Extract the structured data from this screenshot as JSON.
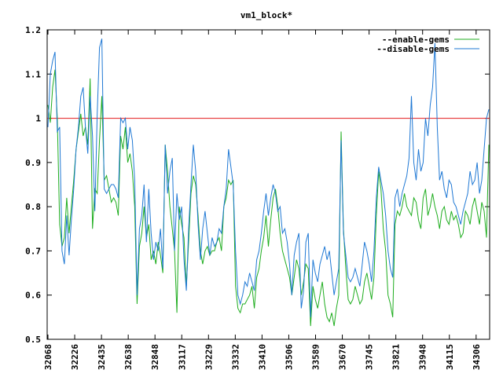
{
  "chart_data": {
    "type": "line",
    "title": "vm1_block*",
    "xlabel": "",
    "ylabel": "",
    "ylim": [
      0.5,
      1.2
    ],
    "yticks": [
      "0.5",
      "0.6",
      "0.7",
      "0.8",
      "0.9",
      "1",
      "1.1",
      "1.2"
    ],
    "xticks": [
      "32068",
      "32226",
      "32435",
      "32638",
      "32848",
      "33117",
      "33229",
      "33332",
      "33410",
      "33506",
      "33589",
      "33670",
      "33745",
      "33821",
      "33948",
      "34115",
      "34306"
    ],
    "legend_position": "top-right",
    "reference_line": {
      "y": 1.0,
      "color": "#e31a1c"
    },
    "series": [
      {
        "name": "--enable-gems",
        "color": "#1fad1f",
        "values": [
          1.03,
          0.99,
          1.07,
          1.11,
          1.0,
          0.76,
          0.71,
          0.73,
          0.82,
          0.74,
          0.8,
          0.86,
          0.93,
          0.97,
          1.01,
          0.96,
          0.98,
          0.94,
          1.09,
          0.75,
          0.84,
          0.83,
          0.95,
          1.05,
          0.86,
          0.87,
          0.84,
          0.81,
          0.82,
          0.81,
          0.78,
          0.96,
          0.93,
          0.98,
          0.9,
          0.92,
          0.88,
          0.8,
          0.58,
          0.71,
          0.74,
          0.8,
          0.73,
          0.76,
          0.68,
          0.7,
          0.67,
          0.72,
          0.69,
          0.65,
          0.94,
          0.88,
          0.8,
          0.75,
          0.7,
          0.56,
          0.8,
          0.76,
          0.73,
          0.62,
          0.72,
          0.83,
          0.87,
          0.85,
          0.78,
          0.7,
          0.67,
          0.7,
          0.71,
          0.69,
          0.7,
          0.7,
          0.72,
          0.73,
          0.7,
          0.8,
          0.82,
          0.86,
          0.85,
          0.86,
          0.62,
          0.57,
          0.56,
          0.58,
          0.58,
          0.59,
          0.6,
          0.62,
          0.57,
          0.64,
          0.66,
          0.7,
          0.73,
          0.78,
          0.71,
          0.77,
          0.82,
          0.84,
          0.8,
          0.74,
          0.7,
          0.68,
          0.66,
          0.64,
          0.6,
          0.64,
          0.68,
          0.66,
          0.6,
          0.63,
          0.67,
          0.66,
          0.53,
          0.62,
          0.59,
          0.57,
          0.6,
          0.63,
          0.58,
          0.55,
          0.54,
          0.56,
          0.53,
          0.57,
          0.6,
          0.97,
          0.75,
          0.66,
          0.59,
          0.58,
          0.59,
          0.62,
          0.6,
          0.58,
          0.59,
          0.63,
          0.65,
          0.62,
          0.59,
          0.64,
          0.78,
          0.88,
          0.84,
          0.75,
          0.7,
          0.6,
          0.58,
          0.55,
          0.76,
          0.79,
          0.78,
          0.8,
          0.83,
          0.8,
          0.79,
          0.78,
          0.82,
          0.81,
          0.77,
          0.75,
          0.82,
          0.84,
          0.78,
          0.8,
          0.83,
          0.8,
          0.78,
          0.75,
          0.79,
          0.8,
          0.77,
          0.76,
          0.79,
          0.77,
          0.78,
          0.76,
          0.73,
          0.74,
          0.79,
          0.78,
          0.76,
          0.8,
          0.82,
          0.79,
          0.76,
          0.81,
          0.79,
          0.73,
          0.94
        ]
      },
      {
        "name": "--disable-gems",
        "color": "#1f78d4",
        "values": [
          0.98,
          1.1,
          1.13,
          1.15,
          0.97,
          0.98,
          0.7,
          0.67,
          0.78,
          0.69,
          0.77,
          0.84,
          0.93,
          0.98,
          1.05,
          1.07,
          0.98,
          0.92,
          1.05,
          0.96,
          0.79,
          1.01,
          1.16,
          1.18,
          0.84,
          0.83,
          0.84,
          0.85,
          0.85,
          0.84,
          0.82,
          1.0,
          0.99,
          1.0,
          0.93,
          0.98,
          0.95,
          0.86,
          0.6,
          0.75,
          0.78,
          0.85,
          0.72,
          0.84,
          0.74,
          0.68,
          0.72,
          0.7,
          0.75,
          0.66,
          0.94,
          0.83,
          0.88,
          0.91,
          0.7,
          0.83,
          0.77,
          0.8,
          0.68,
          0.61,
          0.75,
          0.85,
          0.94,
          0.88,
          0.76,
          0.68,
          0.75,
          0.79,
          0.74,
          0.69,
          0.73,
          0.71,
          0.72,
          0.75,
          0.74,
          0.8,
          0.84,
          0.93,
          0.89,
          0.85,
          0.7,
          0.6,
          0.58,
          0.6,
          0.63,
          0.62,
          0.65,
          0.63,
          0.61,
          0.68,
          0.7,
          0.74,
          0.79,
          0.83,
          0.78,
          0.82,
          0.85,
          0.83,
          0.79,
          0.8,
          0.74,
          0.75,
          0.72,
          0.67,
          0.6,
          0.69,
          0.72,
          0.74,
          0.57,
          0.61,
          0.72,
          0.74,
          0.55,
          0.68,
          0.65,
          0.63,
          0.67,
          0.69,
          0.71,
          0.68,
          0.7,
          0.65,
          0.6,
          0.63,
          0.66,
          0.95,
          0.74,
          0.69,
          0.64,
          0.63,
          0.64,
          0.66,
          0.64,
          0.62,
          0.67,
          0.72,
          0.7,
          0.67,
          0.63,
          0.7,
          0.82,
          0.89,
          0.86,
          0.83,
          0.78,
          0.7,
          0.66,
          0.64,
          0.82,
          0.84,
          0.8,
          0.83,
          0.85,
          0.87,
          0.91,
          1.05,
          0.9,
          0.86,
          0.93,
          0.88,
          0.9,
          1.0,
          0.96,
          1.03,
          1.07,
          1.17,
          0.98,
          0.86,
          0.88,
          0.84,
          0.82,
          0.86,
          0.85,
          0.81,
          0.8,
          0.78,
          0.76,
          0.79,
          0.81,
          0.83,
          0.88,
          0.85,
          0.86,
          0.9,
          0.83,
          0.86,
          0.93,
          1.0,
          1.02
        ]
      }
    ]
  }
}
